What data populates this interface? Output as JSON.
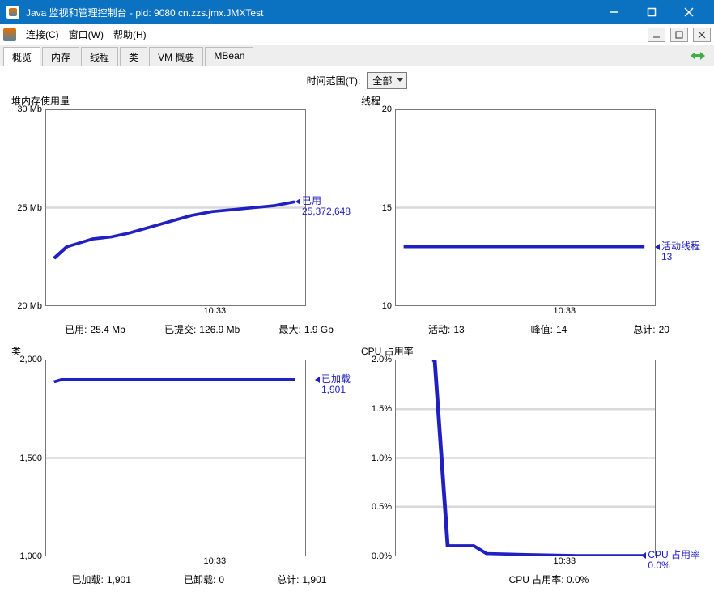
{
  "window": {
    "title": "Java 监视和管理控制台 - pid: 9080 cn.zzs.jmx.JMXTest",
    "titlebar_bg": "#0b72c1",
    "titlebar_fg": "#ffffff"
  },
  "menu": {
    "items": [
      "连接(C)",
      "窗口(W)",
      "帮助(H)"
    ]
  },
  "tabs": {
    "items": [
      "概览",
      "内存",
      "线程",
      "类",
      "VM 概要",
      "MBean"
    ],
    "active_index": 0
  },
  "time_range": {
    "label": "时间范围(T):",
    "value": "全部"
  },
  "colors": {
    "series": "#2020c0",
    "grid": "#d9d9d9",
    "border": "#777777",
    "refresh_green": "#3cb043"
  },
  "charts": {
    "heap": {
      "title": "堆内存使用量",
      "type": "line",
      "ylim": [
        20,
        30
      ],
      "yticks": [
        20,
        25,
        30
      ],
      "ytick_labels": [
        "20 Mb",
        "25 Mb",
        "30 Mb"
      ],
      "x_tick_label": "10:33",
      "x_tick_frac": 0.65,
      "points": [
        [
          0.03,
          22.4
        ],
        [
          0.08,
          23.0
        ],
        [
          0.13,
          23.2
        ],
        [
          0.18,
          23.4
        ],
        [
          0.25,
          23.5
        ],
        [
          0.32,
          23.7
        ],
        [
          0.4,
          24.0
        ],
        [
          0.48,
          24.3
        ],
        [
          0.56,
          24.6
        ],
        [
          0.64,
          24.8
        ],
        [
          0.72,
          24.9
        ],
        [
          0.8,
          25.0
        ],
        [
          0.88,
          25.1
        ],
        [
          0.96,
          25.3
        ]
      ],
      "marker": {
        "title": "已用",
        "value": "25,372,648",
        "y": 25.3
      },
      "stats": [
        {
          "k": "已用:",
          "v": "25.4  Mb"
        },
        {
          "k": "已提交:",
          "v": "126.9  Mb"
        },
        {
          "k": "最大:",
          "v": "1.9  Gb"
        }
      ]
    },
    "threads": {
      "title": "线程",
      "type": "line",
      "ylim": [
        10,
        20
      ],
      "yticks": [
        10,
        15,
        20
      ],
      "ytick_labels": [
        "10",
        "15",
        "20"
      ],
      "x_tick_label": "10:33",
      "x_tick_frac": 0.65,
      "points": [
        [
          0.03,
          13
        ],
        [
          0.96,
          13
        ]
      ],
      "marker": {
        "title": "活动线程",
        "value": "13",
        "y": 13
      },
      "stats": [
        {
          "k": "活动:",
          "v": "13"
        },
        {
          "k": "峰值:",
          "v": "14"
        },
        {
          "k": "总计:",
          "v": "20"
        }
      ]
    },
    "classes": {
      "title": "类",
      "type": "line",
      "ylim": [
        1000,
        2000
      ],
      "yticks": [
        1000,
        1500,
        2000
      ],
      "ytick_labels": [
        "1,000",
        "1,500",
        "2,000"
      ],
      "x_tick_label": "10:33",
      "x_tick_frac": 0.65,
      "points": [
        [
          0.03,
          1890
        ],
        [
          0.06,
          1901
        ],
        [
          0.96,
          1901
        ]
      ],
      "marker": {
        "title": "已加载",
        "value": "1,901",
        "y": 1901
      },
      "stats": [
        {
          "k": "已加载:",
          "v": "1,901"
        },
        {
          "k": "已卸载:",
          "v": "0"
        },
        {
          "k": "总计:",
          "v": "1,901"
        }
      ]
    },
    "cpu": {
      "title": "CPU 占用率",
      "type": "line",
      "ylim": [
        0,
        2.0
      ],
      "yticks": [
        0,
        0.5,
        1.0,
        1.5,
        2.0
      ],
      "ytick_labels": [
        "0.0%",
        "0.5%",
        "1.0%",
        "1.5%",
        "2.0%"
      ],
      "x_tick_label": "10:33",
      "x_tick_frac": 0.65,
      "points": [
        [
          0.14,
          2.4
        ],
        [
          0.15,
          2.4
        ],
        [
          0.2,
          0.1
        ],
        [
          0.3,
          0.1
        ],
        [
          0.35,
          0.02
        ],
        [
          0.5,
          0.01
        ],
        [
          0.7,
          0.0
        ],
        [
          0.96,
          0.0
        ]
      ],
      "marker": {
        "title": "CPU 占用率",
        "value": "0.0%",
        "y": 0.0
      },
      "stats_center": "CPU 占用率: 0.0%"
    }
  }
}
